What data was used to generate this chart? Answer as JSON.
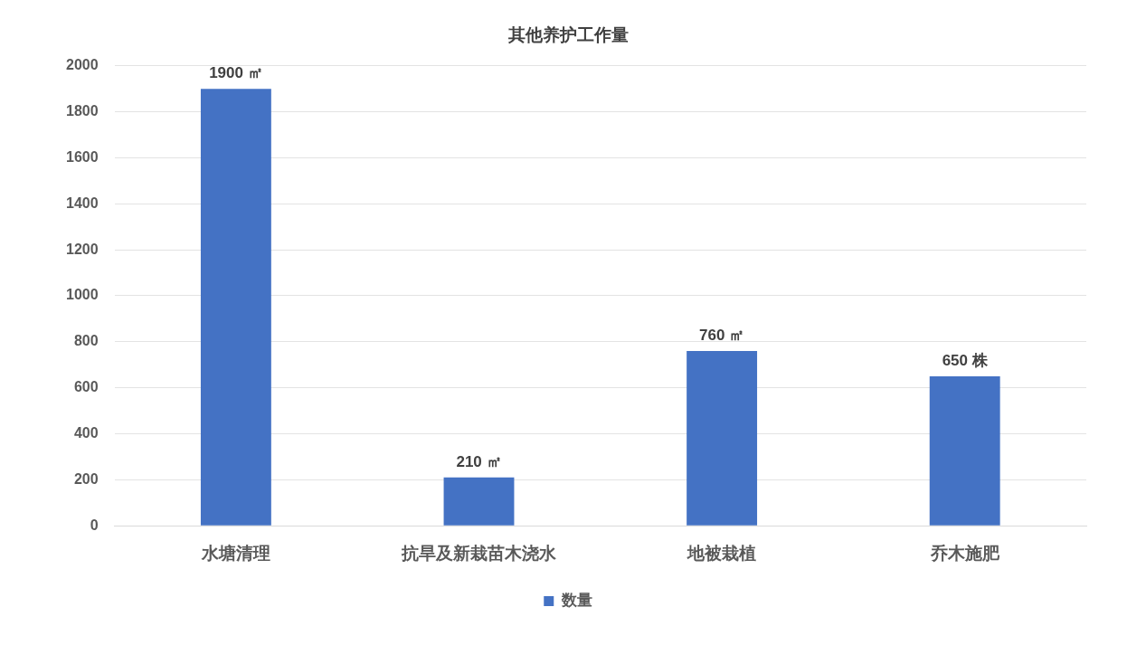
{
  "chart_data": {
    "type": "bar",
    "title": "其他养护工作量",
    "categories": [
      "水塘清理",
      "抗旱及新栽苗木浇水",
      "地被栽植",
      "乔木施肥"
    ],
    "series": [
      {
        "name": "数量",
        "color": "#4472c4",
        "values": [
          1900,
          210,
          760,
          650
        ],
        "value_labels": [
          "1900 ㎡",
          "210 ㎡",
          "760 ㎡",
          "650 株"
        ]
      }
    ],
    "ylim": [
      0,
      2000
    ],
    "yticks": [
      0,
      200,
      400,
      600,
      800,
      1000,
      1200,
      1400,
      1600,
      1800,
      2000
    ],
    "grid": "y",
    "legend": "bottom"
  }
}
